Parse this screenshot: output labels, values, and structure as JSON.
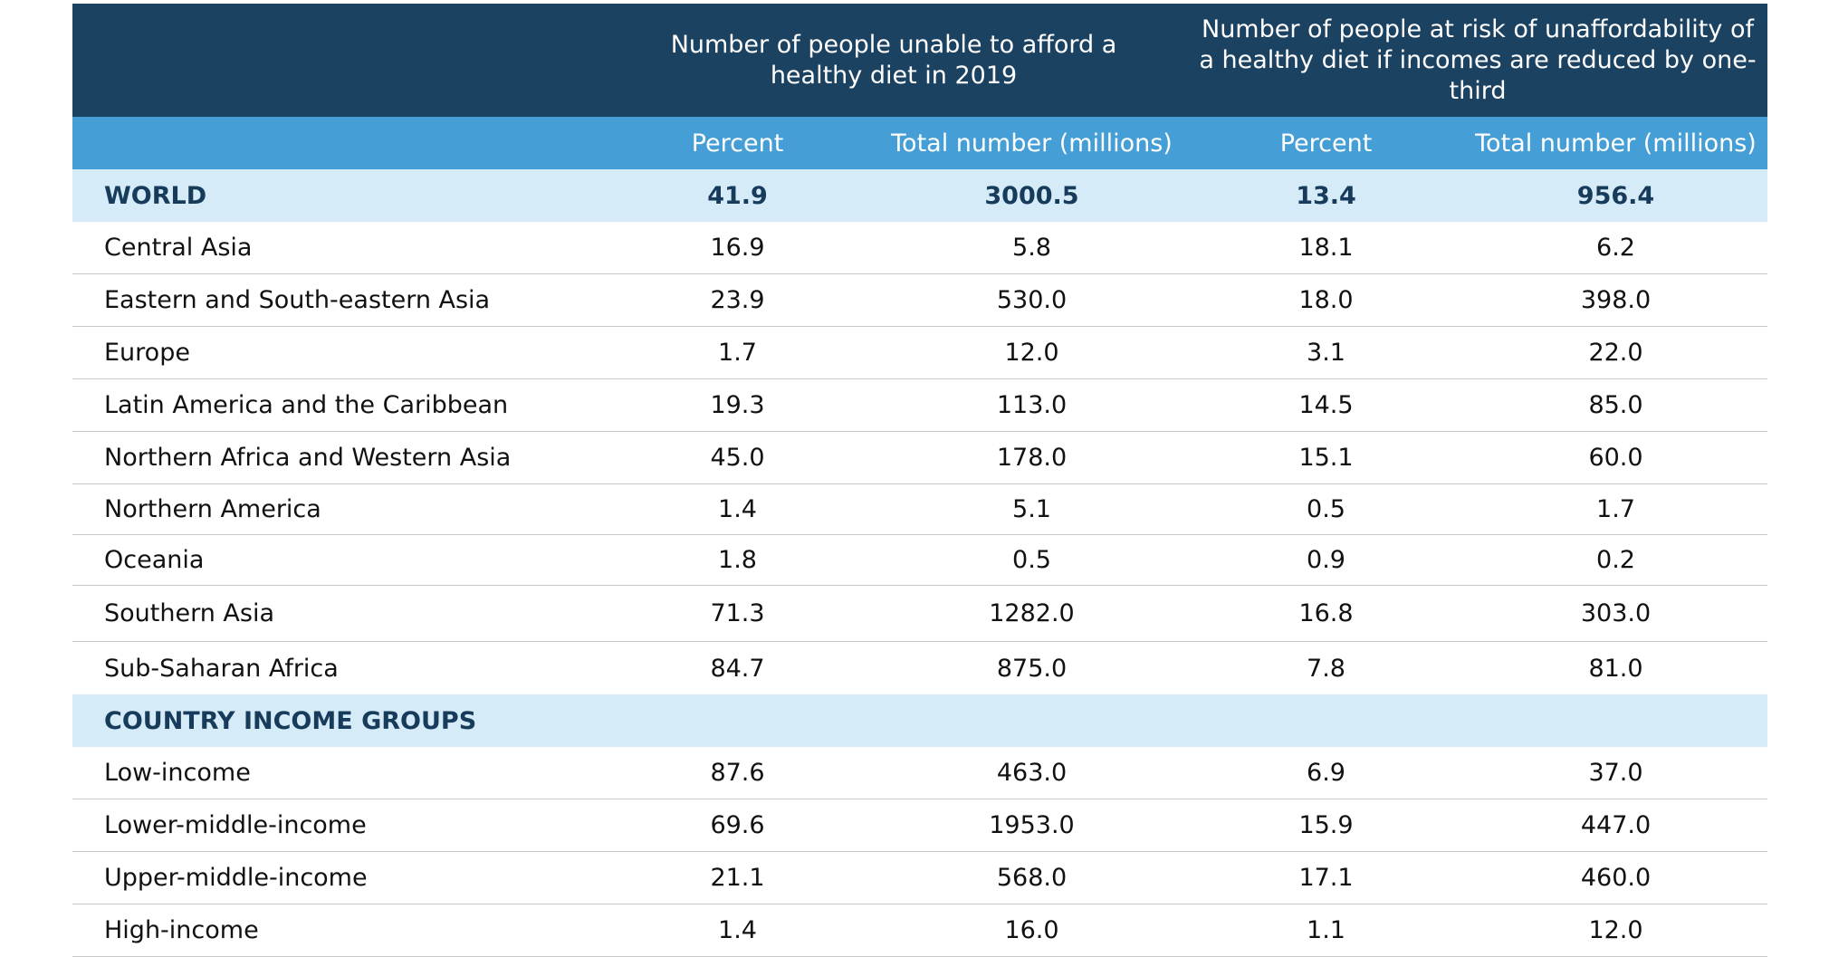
{
  "header": {
    "group1": "Number of people unable to afford a healthy diet in 2019",
    "group2": "Number of people at risk of unaffordability of a healthy diet if incomes are reduced by one-third",
    "col_percent": "Percent",
    "col_total": "Total number (millions)"
  },
  "world": {
    "label": "WORLD",
    "p1": "41.9",
    "t1": "3000.5",
    "p2": "13.4",
    "t2": "956.4"
  },
  "regions": [
    {
      "label": "Central Asia",
      "p1": "16.9",
      "t1": "5.8",
      "p2": "18.1",
      "t2": "6.2"
    },
    {
      "label": "Eastern and South-eastern Asia",
      "p1": "23.9",
      "t1": "530.0",
      "p2": "18.0",
      "t2": "398.0"
    },
    {
      "label": "Europe",
      "p1": "1.7",
      "t1": "12.0",
      "p2": "3.1",
      "t2": "22.0"
    },
    {
      "label": "Latin America and the Caribbean",
      "p1": "19.3",
      "t1": "113.0",
      "p2": "14.5",
      "t2": "85.0"
    },
    {
      "label": "Northern Africa and Western Asia",
      "p1": "45.0",
      "t1": "178.0",
      "p2": "15.1",
      "t2": "60.0"
    },
    {
      "label": "Northern America",
      "p1": "1.4",
      "t1": "5.1",
      "p2": "0.5",
      "t2": "1.7"
    },
    {
      "label": "Oceania",
      "p1": "1.8",
      "t1": "0.5",
      "p2": "0.9",
      "t2": "0.2"
    },
    {
      "label": "Southern Asia",
      "p1": "71.3",
      "t1": "1282.0",
      "p2": "16.8",
      "t2": "303.0"
    },
    {
      "label": "Sub-Saharan Africa",
      "p1": "84.7",
      "t1": "875.0",
      "p2": "7.8",
      "t2": "81.0"
    }
  ],
  "income_section": {
    "label": "COUNTRY INCOME GROUPS"
  },
  "income_groups": [
    {
      "label": "Low-income",
      "p1": "87.6",
      "t1": "463.0",
      "p2": "6.9",
      "t2": "37.0"
    },
    {
      "label": "Lower-middle-income",
      "p1": "69.6",
      "t1": "1953.0",
      "p2": "15.9",
      "t2": "447.0"
    },
    {
      "label": "Upper-middle-income",
      "p1": "21.1",
      "t1": "568.0",
      "p2": "17.1",
      "t2": "460.0"
    },
    {
      "label": "High-income",
      "p1": "1.4",
      "t1": "16.0",
      "p2": "1.1",
      "t2": "12.0"
    }
  ]
}
